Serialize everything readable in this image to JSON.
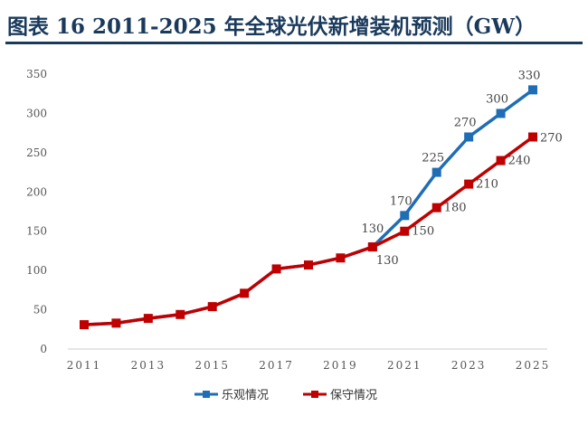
{
  "title": "图表 16   2011-2025 年全球光伏新增装机预测（GW）",
  "chart_data": {
    "type": "line",
    "title": "2011-2025年全球光伏新增装机预测（GW）",
    "xlabel": "",
    "ylabel": "",
    "x": [
      2011,
      2012,
      2013,
      2014,
      2015,
      2016,
      2017,
      2018,
      2019,
      2020,
      2021,
      2022,
      2023,
      2024,
      2025
    ],
    "x_tick_labels": [
      "2011",
      "2013",
      "2015",
      "2017",
      "2019",
      "2021",
      "2023",
      "2025"
    ],
    "y_tick_labels": [
      "0",
      "50",
      "100",
      "150",
      "200",
      "250",
      "300",
      "350"
    ],
    "ylim": [
      0,
      350
    ],
    "grid": false,
    "legend_position": "bottom",
    "series": [
      {
        "name": "乐观情况",
        "color": "#1f6db5",
        "values": [
          31,
          33,
          39,
          44,
          54,
          71,
          102,
          107,
          116,
          130,
          170,
          225,
          270,
          300,
          330
        ],
        "labels": {
          "9": "130",
          "10": "170",
          "11": "225",
          "12": "270",
          "13": "300",
          "14": "330"
        }
      },
      {
        "name": "保守情况",
        "color": "#c00000",
        "values": [
          31,
          33,
          39,
          44,
          54,
          71,
          102,
          107,
          116,
          130,
          150,
          180,
          210,
          240,
          270
        ],
        "labels": {
          "9": "130",
          "10": "150",
          "11": "180",
          "12": "210",
          "13": "240",
          "14": "270"
        }
      }
    ]
  }
}
